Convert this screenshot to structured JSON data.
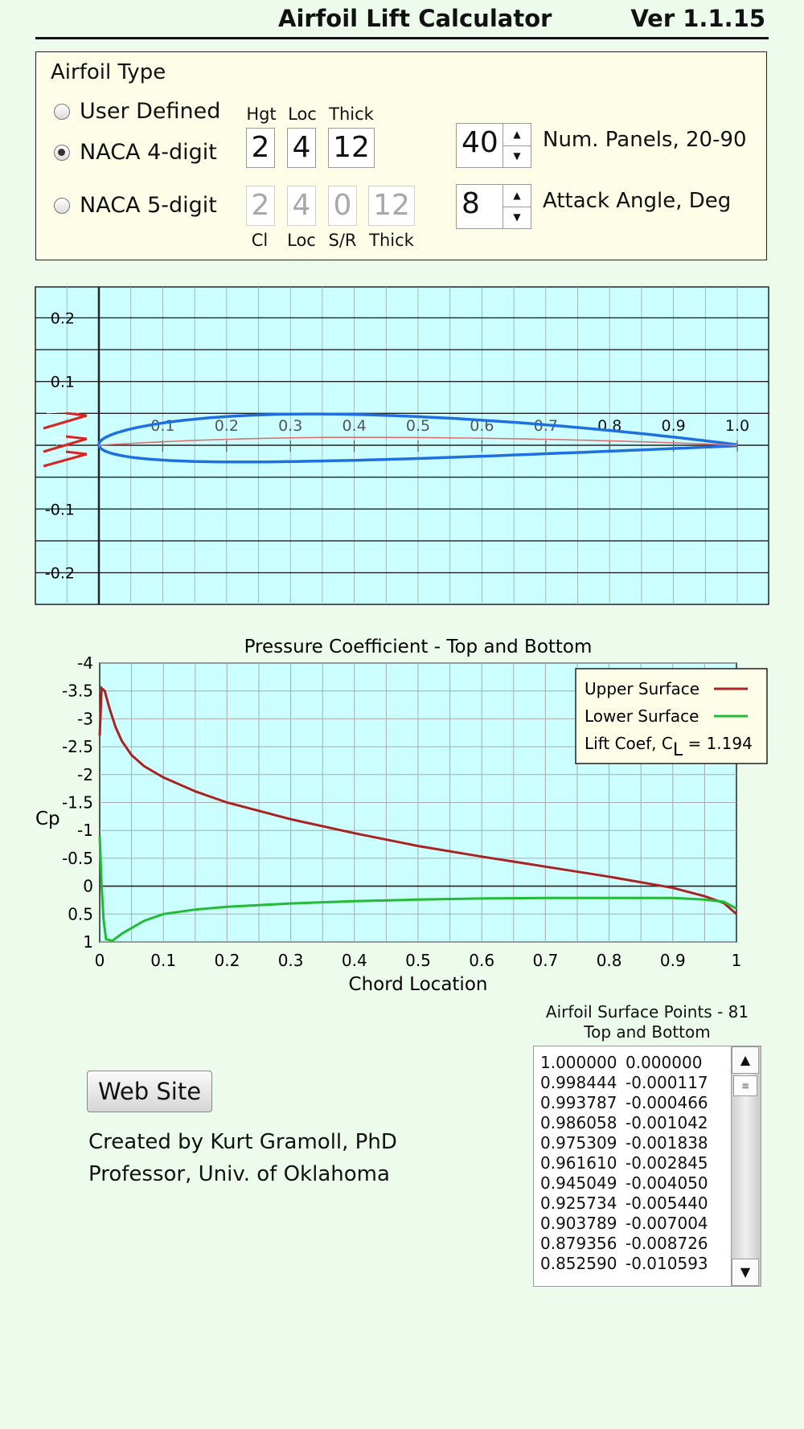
{
  "header": {
    "title": "Airfoil Lift Calculator",
    "version": "Ver 1.1.15"
  },
  "airfoil_type": {
    "title": "Airfoil Type",
    "options": [
      {
        "label": "User Defined",
        "selected": false
      },
      {
        "label": "NACA 4-digit",
        "selected": true
      },
      {
        "label": "NACA 5-digit",
        "selected": false
      }
    ],
    "naca4": {
      "labels": [
        "Hgt",
        "Loc",
        "Thick"
      ],
      "values": [
        "2",
        "4",
        "12"
      ]
    },
    "naca5": {
      "labels": [
        "Cl",
        "Loc",
        "S/R",
        "Thick"
      ],
      "values": [
        "2",
        "4",
        "0",
        "12"
      ]
    },
    "num_panels": {
      "value": "40",
      "label": "Num. Panels, 20-90"
    },
    "attack_angle": {
      "value": "8",
      "label": "Attack Angle, Deg"
    }
  },
  "colors": {
    "plot_bg": "#ccffff",
    "airfoil": "#1f6fe0",
    "camber": "#e07070",
    "upper": "#aa2222",
    "lower": "#22bb33",
    "arrows": "#dd2222"
  },
  "airfoil_plot": {
    "x_ticks": [
      "0.1",
      "0.2",
      "0.3",
      "0.4",
      "0.5",
      "0.6",
      "0.7",
      "0.8",
      "0.9",
      "1.0"
    ],
    "y_ticks": [
      "0.2",
      "0.1",
      "-0.1",
      "-0.2"
    ]
  },
  "chart_data": {
    "type": "line",
    "title": "Pressure Coefficient - Top and Bottom",
    "xlabel": "Chord Location",
    "ylabel": "Cp",
    "xlim": [
      0,
      1
    ],
    "ylim": [
      -4,
      1
    ],
    "y_inverted": true,
    "grid": true,
    "legend": "top-right",
    "x_ticks": [
      "0",
      "0.1",
      "0.2",
      "0.3",
      "0.4",
      "0.5",
      "0.6",
      "0.7",
      "0.8",
      "0.9",
      "1"
    ],
    "y_ticks": [
      "-4",
      "-3.5",
      "-3",
      "-2.5",
      "-2",
      "-1.5",
      "-1",
      "-0.5",
      "0",
      "0.5",
      "1"
    ],
    "lift_label_prefix": "Lift Coef, C",
    "lift_label_sub": "L",
    "lift_label_value": " = 1.194",
    "series": [
      {
        "name": "Upper Surface",
        "x": [
          0,
          0.003,
          0.008,
          0.015,
          0.025,
          0.035,
          0.05,
          0.07,
          0.1,
          0.15,
          0.2,
          0.3,
          0.4,
          0.5,
          0.6,
          0.7,
          0.8,
          0.9,
          0.95,
          0.98,
          0.995,
          1.0
        ],
        "y": [
          -2.7,
          -3.55,
          -3.5,
          -3.2,
          -2.85,
          -2.6,
          -2.35,
          -2.15,
          -1.95,
          -1.7,
          -1.5,
          -1.2,
          -0.95,
          -0.72,
          -0.53,
          -0.35,
          -0.17,
          0.03,
          0.18,
          0.3,
          0.45,
          0.5
        ]
      },
      {
        "name": "Lower Surface",
        "x": [
          0,
          0.003,
          0.006,
          0.01,
          0.02,
          0.035,
          0.05,
          0.07,
          0.1,
          0.15,
          0.2,
          0.3,
          0.4,
          0.5,
          0.6,
          0.7,
          0.8,
          0.9,
          0.95,
          0.98,
          1.0
        ],
        "y": [
          -0.9,
          0.0,
          0.6,
          0.95,
          0.98,
          0.85,
          0.75,
          0.62,
          0.5,
          0.42,
          0.37,
          0.31,
          0.27,
          0.24,
          0.22,
          0.21,
          0.21,
          0.21,
          0.24,
          0.28,
          0.4
        ]
      }
    ]
  },
  "web_button": "Web Site",
  "credits": [
    "Created by Kurt Gramoll, PhD",
    "Professor, Univ. of Oklahoma"
  ],
  "surface_points": {
    "title_line1": "Airfoil Surface Points - 81",
    "title_line2": "Top and Bottom",
    "rows": [
      [
        "1.000000",
        "0.000000"
      ],
      [
        "0.998444",
        "-0.000117"
      ],
      [
        "0.993787",
        "-0.000466"
      ],
      [
        "0.986058",
        "-0.001042"
      ],
      [
        "0.975309",
        "-0.001838"
      ],
      [
        "0.961610",
        "-0.002845"
      ],
      [
        "0.945049",
        "-0.004050"
      ],
      [
        "0.925734",
        "-0.005440"
      ],
      [
        "0.903789",
        "-0.007004"
      ],
      [
        "0.879356",
        "-0.008726"
      ],
      [
        "0.852590",
        "-0.010593"
      ]
    ]
  }
}
